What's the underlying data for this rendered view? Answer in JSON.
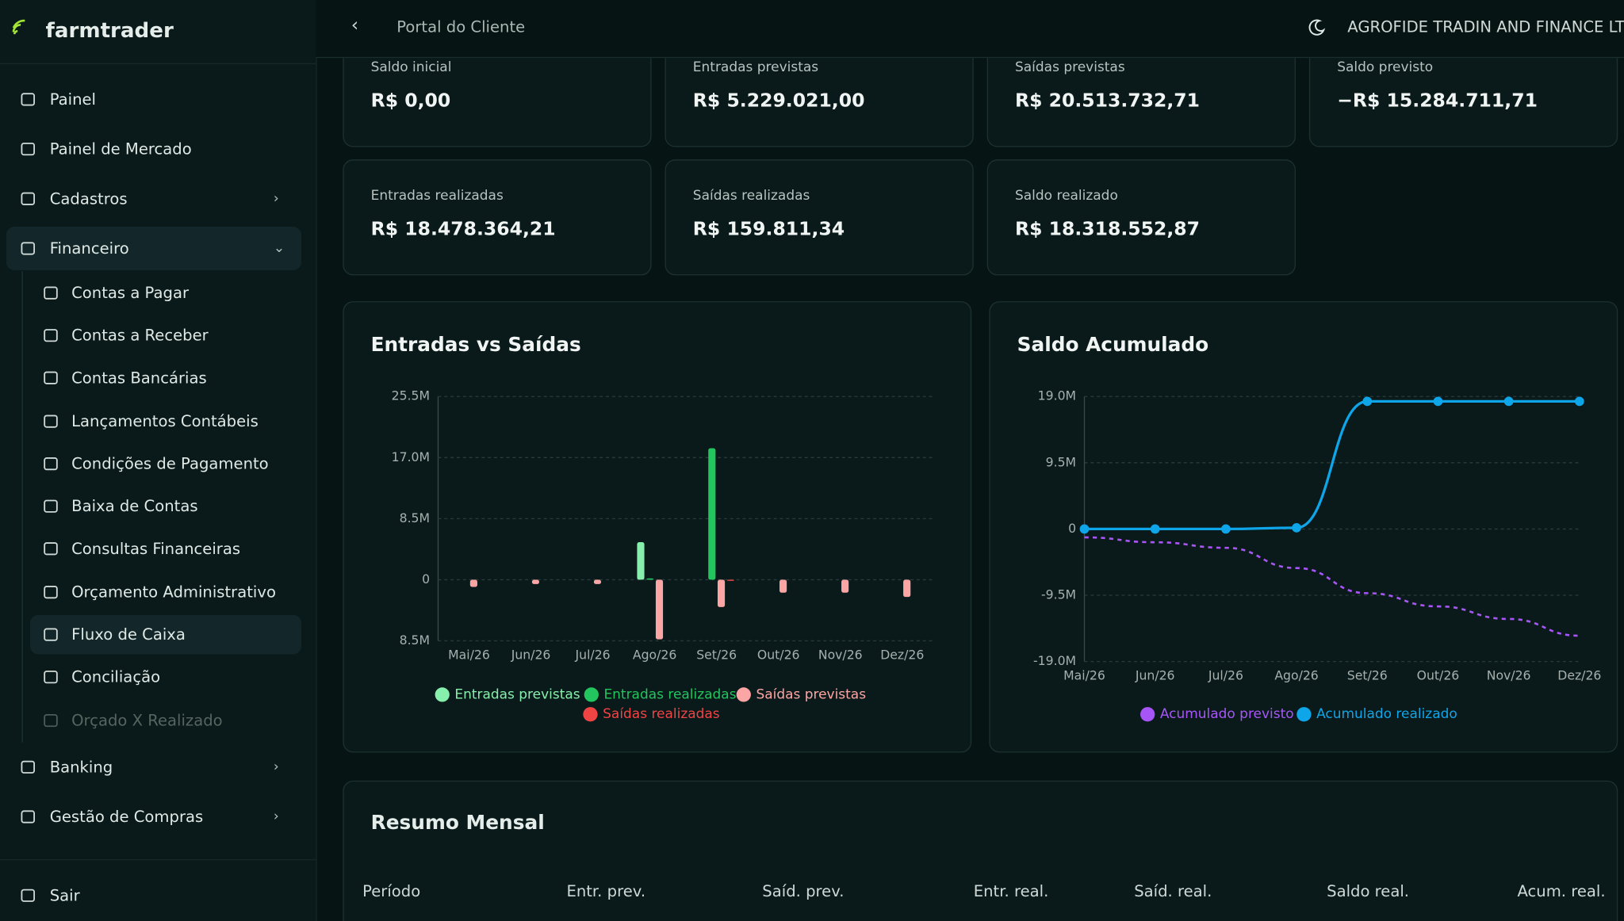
{
  "sidebar": {
    "brand": "farmtrader",
    "items": [
      "Painel",
      "Painel de Mercado",
      "Cadastros",
      "Financeiro"
    ],
    "financeiro_items": [
      "Contas a Pagar",
      "Contas a Receber",
      "Contas Bancárias",
      "Lançamentos Contábeis",
      "Condições de Pagamento",
      "Baixa de Contas",
      "Consultas Financeiras",
      "Orçamento Administrativo",
      "Fluxo de Caixa",
      "Conciliação",
      "Orçado X Realizado"
    ],
    "more_items": [
      "Banking",
      "Gestão de Compras"
    ],
    "logout": "Sair"
  },
  "header": {
    "title": "Portal do Cliente",
    "company": "AGROFIDE TRADIN AND FINANCE LTDA"
  },
  "cards": [
    {
      "label": "Saldo inicial",
      "value": "R$ 0,00"
    },
    {
      "label": "Entradas previstas",
      "value": "R$ 5.229.021,00"
    },
    {
      "label": "Saídas previstas",
      "value": "R$ 20.513.732,71"
    },
    {
      "label": "Saldo previsto",
      "value": "−R$ 15.284.711,71"
    },
    {
      "label": "Entradas realizadas",
      "value": "R$ 18.478.364,21"
    },
    {
      "label": "Saídas realizadas",
      "value": "R$ 159.811,34"
    },
    {
      "label": "Saldo realizado",
      "value": "R$ 18.318.552,87"
    }
  ],
  "chart_data": [
    {
      "type": "bar",
      "title": "Entradas vs Saídas",
      "categories": [
        "Mai/26",
        "Jun/26",
        "Jul/26",
        "Ago/26",
        "Set/26",
        "Out/26",
        "Nov/26",
        "Dez/26"
      ],
      "ylim": [
        -8500000,
        25500000
      ],
      "yticks": [
        {
          "value": -8500000,
          "label": "8.5M"
        },
        {
          "value": 0,
          "label": "0"
        },
        {
          "value": 8500000,
          "label": "8.5M"
        },
        {
          "value": 17000000,
          "label": "17.0M"
        },
        {
          "value": 25500000,
          "label": "25.5M"
        }
      ],
      "grid": true,
      "series": [
        {
          "name": "Entradas previstas",
          "color": "#86efac",
          "values": [
            0,
            0,
            0,
            5229021,
            0,
            0,
            0,
            0
          ]
        },
        {
          "name": "Entradas realizadas",
          "color": "#22c55e",
          "values": [
            0,
            0,
            0,
            178364,
            18300000,
            0,
            0,
            0
          ]
        },
        {
          "name": "Saídas previstas",
          "color": "#fca5a5",
          "values": [
            -1000000,
            -600000,
            -600000,
            -8300000,
            -3800000,
            -1800000,
            -1800000,
            -2400000
          ]
        },
        {
          "name": "Saídas realizadas",
          "color": "#ef4444",
          "values": [
            0,
            0,
            0,
            0,
            -160000,
            0,
            0,
            0
          ]
        }
      ]
    },
    {
      "type": "line",
      "title": "Saldo Acumulado",
      "categories": [
        "Mai/26",
        "Jun/26",
        "Jul/26",
        "Ago/26",
        "Set/26",
        "Out/26",
        "Nov/26",
        "Dez/26"
      ],
      "ylim": [
        -19000000,
        19000000
      ],
      "yticks": [
        {
          "value": -19000000,
          "label": "-19.0M"
        },
        {
          "value": -9500000,
          "label": "-9.5M"
        },
        {
          "value": 0,
          "label": "0"
        },
        {
          "value": 9500000,
          "label": "9.5M"
        },
        {
          "value": 19000000,
          "label": "19.0M"
        }
      ],
      "grid": true,
      "series": [
        {
          "name": "Acumulado previsto",
          "color": "#a855f7",
          "dashed": true,
          "values": [
            -1200000,
            -1900000,
            -2700000,
            -5600000,
            -9200000,
            -11100000,
            -12900000,
            -15300000
          ]
        },
        {
          "name": "Acumulado realizado",
          "color": "#0ea5e9",
          "values": [
            0,
            0,
            0,
            178364,
            18300000,
            18300000,
            18300000,
            18300000
          ]
        }
      ]
    }
  ],
  "table": {
    "title": "Resumo Mensal",
    "headers": [
      "Período",
      "Entr. prev.",
      "Saíd. prev.",
      "Entr. real.",
      "Saíd. real.",
      "Saldo real.",
      "Acum. real."
    ]
  }
}
